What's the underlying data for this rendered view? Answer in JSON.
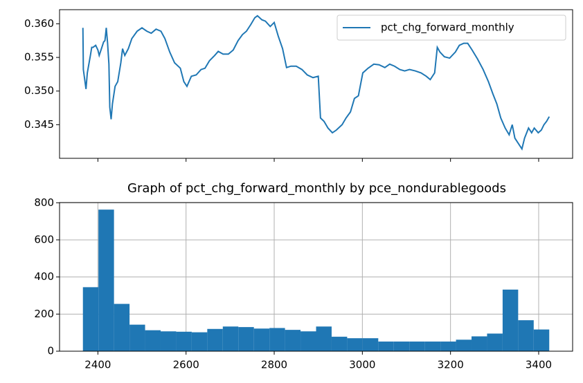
{
  "chart_data": [
    {
      "type": "line",
      "x": [
        2366,
        2367,
        2373,
        2376,
        2383,
        2386,
        2389,
        2395,
        2400,
        2403,
        2408,
        2413,
        2416,
        2419,
        2422,
        2425,
        2427,
        2430,
        2433,
        2439,
        2445,
        2452,
        2456,
        2461,
        2469,
        2477,
        2489,
        2500,
        2511,
        2521,
        2532,
        2543,
        2552,
        2563,
        2574,
        2587,
        2595,
        2602,
        2612,
        2623,
        2634,
        2643,
        2653,
        2665,
        2673,
        2684,
        2696,
        2707,
        2718,
        2728,
        2737,
        2747,
        2756,
        2762,
        2772,
        2780,
        2791,
        2800,
        2809,
        2819,
        2828,
        2838,
        2850,
        2863,
        2875,
        2888,
        2900,
        2905,
        2913,
        2922,
        2932,
        2941,
        2954,
        2963,
        2973,
        2982,
        2991,
        3001,
        3013,
        3026,
        3038,
        3051,
        3062,
        3073,
        3085,
        3096,
        3107,
        3120,
        3133,
        3145,
        3154,
        3164,
        3170,
        3176,
        3186,
        3198,
        3211,
        3220,
        3230,
        3239,
        3249,
        3261,
        3274,
        3286,
        3296,
        3305,
        3314,
        3324,
        3333,
        3340,
        3346,
        3352,
        3362,
        3368,
        3377,
        3384,
        3390,
        3399,
        3406,
        3412,
        3418,
        3424
      ],
      "series": [
        {
          "name": "pct_chg_forward_monthly",
          "color": "#1f77b4",
          "values": [
            0.3594,
            0.3532,
            0.3503,
            0.3527,
            0.3553,
            0.3565,
            0.3565,
            0.3568,
            0.3561,
            0.3553,
            0.3563,
            0.3573,
            0.3575,
            0.3594,
            0.3571,
            0.354,
            0.3476,
            0.3458,
            0.3481,
            0.3507,
            0.3514,
            0.3542,
            0.3563,
            0.3553,
            0.3563,
            0.3578,
            0.3589,
            0.3594,
            0.3589,
            0.3586,
            0.3592,
            0.3589,
            0.3578,
            0.3558,
            0.3542,
            0.3534,
            0.3514,
            0.3507,
            0.3522,
            0.3524,
            0.3532,
            0.3534,
            0.3545,
            0.3553,
            0.3559,
            0.3555,
            0.3555,
            0.3561,
            0.3575,
            0.3584,
            0.3589,
            0.3599,
            0.3609,
            0.3612,
            0.3606,
            0.3604,
            0.3596,
            0.3602,
            0.3582,
            0.3563,
            0.3535,
            0.3537,
            0.3537,
            0.3532,
            0.3524,
            0.352,
            0.3522,
            0.346,
            0.3455,
            0.3445,
            0.3438,
            0.3442,
            0.345,
            0.346,
            0.3469,
            0.3489,
            0.3493,
            0.3527,
            0.3534,
            0.354,
            0.3539,
            0.3535,
            0.354,
            0.3537,
            0.3532,
            0.353,
            0.3532,
            0.353,
            0.3527,
            0.3522,
            0.3517,
            0.3527,
            0.3565,
            0.3558,
            0.3551,
            0.3549,
            0.3558,
            0.3568,
            0.3571,
            0.3571,
            0.3561,
            0.3548,
            0.3532,
            0.3514,
            0.3496,
            0.3481,
            0.346,
            0.3445,
            0.3435,
            0.345,
            0.343,
            0.3424,
            0.3414,
            0.343,
            0.3445,
            0.3438,
            0.3445,
            0.3438,
            0.3442,
            0.345,
            0.3455,
            0.3462
          ]
        }
      ],
      "legend": "upper right",
      "xlim": [
        2313,
        3477
      ],
      "xticks": [
        2400,
        2600,
        2800,
        3000,
        3200,
        3400
      ],
      "ylim": [
        0.34,
        0.3621
      ],
      "yticks": [
        0.345,
        {
          "value": 0.35,
          "label": "0.350"
        },
        0.355,
        {
          "value": 0.36,
          "label": "0.360"
        }
      ],
      "grid": false
    },
    {
      "type": "histogram",
      "title": "Graph of pct_chg_forward_monthly by pce_nondurablegoods",
      "bins": [
        2366,
        2401.27,
        2436.53,
        2471.8,
        2507.07,
        2542.33,
        2577.6,
        2612.87,
        2648.13,
        2683.4,
        2718.67,
        2753.93,
        2789.2,
        2824.47,
        2859.73,
        2895,
        2930.27,
        2965.53,
        3000.8,
        3036.07,
        3071.33,
        3106.6,
        3141.87,
        3177.13,
        3212.4,
        3247.67,
        3282.93,
        3318.2,
        3353.47,
        3388.73,
        3424
      ],
      "values": [
        345,
        763,
        255,
        143,
        113,
        107,
        105,
        102,
        120,
        133,
        130,
        122,
        125,
        115,
        107,
        133,
        78,
        70,
        70,
        52,
        52,
        52,
        52,
        52,
        62,
        80,
        95,
        332,
        167,
        117
      ],
      "color": "#1f77b4",
      "xlim": [
        2313,
        3477
      ],
      "xticks": [
        2400,
        2600,
        2800,
        3000,
        3200,
        3400
      ],
      "ylim": [
        0,
        801
      ],
      "yticks": [
        0,
        200,
        400,
        600,
        800
      ],
      "grid": true
    }
  ]
}
